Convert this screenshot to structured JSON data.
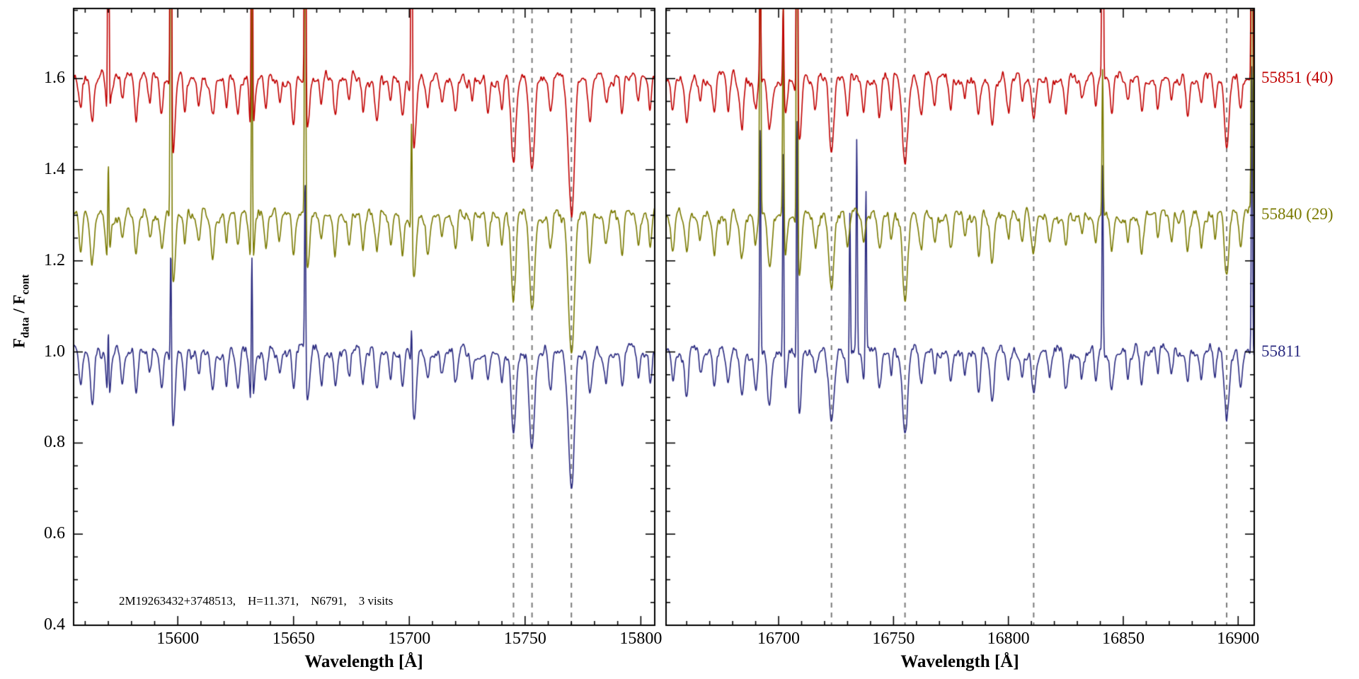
{
  "page": {
    "background": "#ffffff"
  },
  "chart_data": {
    "type": "line",
    "title": "",
    "xlabel": "Wavelength [Å]",
    "ylabel_parts": {
      "f1": "F",
      "sub1": "data",
      "mid": " / F",
      "sub2": "cont"
    },
    "ylim": [
      0.4,
      1.754
    ],
    "yticks": [
      "0.4",
      "0.6",
      "0.8",
      "1.0",
      "1.2",
      "1.4",
      "1.6"
    ],
    "ytick_values": [
      0.4,
      0.6,
      0.8,
      1.0,
      1.2,
      1.4,
      1.6
    ],
    "annotation": "2M19263432+3748513,    H=11.371,    N6791,    3 visits",
    "dashed_color": "#7a7a7a",
    "frame_color": "#000000",
    "grid": false,
    "legend_position": "right-outside",
    "series": [
      {
        "label": "55851 (40)",
        "color": "#c00000",
        "continuum": 1.6
      },
      {
        "label": "55840 (29)",
        "color": "#7a7a00",
        "continuum": 1.3
      },
      {
        "label": "55811",
        "color": "#2a2a80",
        "continuum": 1.0
      }
    ],
    "panels": [
      {
        "xlim": [
          15555,
          15806
        ],
        "xticks": [
          15600,
          15650,
          15700,
          15750,
          15800
        ],
        "xtick_labels": [
          "15600",
          "15650",
          "15700",
          "15750",
          "15800"
        ],
        "dashed_lines": [
          15745,
          15753,
          15770
        ],
        "absorption_lines": [
          [
            15558,
            0.07,
            0.7
          ],
          [
            15563,
            0.1,
            0.8
          ],
          [
            15570,
            0.12,
            0.8
          ],
          [
            15576,
            0.06,
            0.6
          ],
          [
            15582,
            0.09,
            0.7
          ],
          [
            15588,
            0.05,
            0.6
          ],
          [
            15593,
            0.08,
            0.7
          ],
          [
            15598,
            0.16,
            0.9
          ],
          [
            15603,
            0.07,
            0.6
          ],
          [
            15609,
            0.05,
            0.6
          ],
          [
            15615,
            0.09,
            0.8
          ],
          [
            15621,
            0.06,
            0.6
          ],
          [
            15626,
            0.08,
            0.7
          ],
          [
            15632,
            0.14,
            0.9
          ],
          [
            15638,
            0.07,
            0.7
          ],
          [
            15644,
            0.05,
            0.6
          ],
          [
            15650,
            0.09,
            0.7
          ],
          [
            15656,
            0.11,
            0.8
          ],
          [
            15662,
            0.06,
            0.6
          ],
          [
            15668,
            0.08,
            0.7
          ],
          [
            15674,
            0.05,
            0.6
          ],
          [
            15680,
            0.07,
            0.7
          ],
          [
            15686,
            0.09,
            0.8
          ],
          [
            15692,
            0.06,
            0.6
          ],
          [
            15697,
            0.08,
            0.7
          ],
          [
            15702,
            0.15,
            0.9
          ],
          [
            15708,
            0.07,
            0.7
          ],
          [
            15714,
            0.05,
            0.6
          ],
          [
            15720,
            0.08,
            0.7
          ],
          [
            15727,
            0.06,
            0.6
          ],
          [
            15734,
            0.07,
            0.7
          ],
          [
            15740,
            0.06,
            0.6
          ],
          [
            15745,
            0.18,
            1.0
          ],
          [
            15753,
            0.21,
            1.1
          ],
          [
            15761,
            0.08,
            0.8
          ],
          [
            15770,
            0.3,
            1.3
          ],
          [
            15778,
            0.1,
            0.8
          ],
          [
            15785,
            0.06,
            0.7
          ],
          [
            15792,
            0.08,
            0.7
          ],
          [
            15799,
            0.06,
            0.6
          ],
          [
            15804,
            0.07,
            0.6
          ]
        ],
        "emission_spikes": [
          [
            15570,
            0.95,
            0.22,
            0.17
          ],
          [
            15597,
            1.6,
            1.25,
            0.3
          ],
          [
            15632,
            1.1,
            0.6,
            0.35
          ],
          [
            15655,
            1.4,
            1.05,
            0.42
          ],
          [
            15701,
            0.95,
            0.28,
            0.12
          ]
        ]
      },
      {
        "xlim": [
          16651,
          16907
        ],
        "xticks": [
          16700,
          16750,
          16800,
          16850,
          16900
        ],
        "xtick_labels": [
          "16700",
          "16750",
          "16800",
          "16850",
          "16900"
        ],
        "dashed_lines": [
          16723,
          16755,
          16811,
          16895
        ],
        "absorption_lines": [
          [
            16654,
            0.07,
            0.7
          ],
          [
            16660,
            0.09,
            0.8
          ],
          [
            16666,
            0.05,
            0.6
          ],
          [
            16672,
            0.08,
            0.7
          ],
          [
            16678,
            0.06,
            0.6
          ],
          [
            16684,
            0.1,
            0.8
          ],
          [
            16690,
            0.07,
            0.7
          ],
          [
            16696,
            0.12,
            0.9
          ],
          [
            16703,
            0.08,
            0.7
          ],
          [
            16709,
            0.14,
            0.9
          ],
          [
            16716,
            0.06,
            0.7
          ],
          [
            16723,
            0.16,
            1.1
          ],
          [
            16730,
            0.07,
            0.7
          ],
          [
            16737,
            0.06,
            0.6
          ],
          [
            16744,
            0.08,
            0.8
          ],
          [
            16749,
            0.06,
            0.6
          ],
          [
            16755,
            0.18,
            1.2
          ],
          [
            16762,
            0.08,
            0.8
          ],
          [
            16768,
            0.06,
            0.6
          ],
          [
            16775,
            0.07,
            0.7
          ],
          [
            16781,
            0.05,
            0.6
          ],
          [
            16787,
            0.08,
            0.7
          ],
          [
            16793,
            0.1,
            0.8
          ],
          [
            16800,
            0.06,
            0.7
          ],
          [
            16806,
            0.05,
            0.6
          ],
          [
            16811,
            0.09,
            0.9
          ],
          [
            16818,
            0.06,
            0.7
          ],
          [
            16825,
            0.07,
            0.7
          ],
          [
            16832,
            0.05,
            0.6
          ],
          [
            16838,
            0.06,
            0.6
          ],
          [
            16845,
            0.08,
            0.7
          ],
          [
            16852,
            0.05,
            0.6
          ],
          [
            16858,
            0.07,
            0.7
          ],
          [
            16865,
            0.06,
            0.6
          ],
          [
            16871,
            0.05,
            0.6
          ],
          [
            16878,
            0.07,
            0.7
          ],
          [
            16884,
            0.06,
            0.6
          ],
          [
            16890,
            0.05,
            0.6
          ],
          [
            16895,
            0.14,
            1.0
          ],
          [
            16901,
            0.07,
            0.7
          ]
        ],
        "emission_spikes": [
          [
            16692,
            0.28,
            0.95,
            0.5
          ],
          [
            16702,
            0.18,
            0.5,
            0.46
          ],
          [
            16708,
            1.25,
            1.55,
            0.58
          ],
          [
            16731,
            0.0,
            0.0,
            0.34
          ],
          [
            16734,
            0.0,
            0.0,
            0.46
          ],
          [
            16738,
            0.0,
            0.0,
            0.36
          ],
          [
            16841,
            1.25,
            0.32,
            0.42
          ],
          [
            16906,
            1.55,
            1.25,
            0.65
          ]
        ]
      }
    ]
  }
}
